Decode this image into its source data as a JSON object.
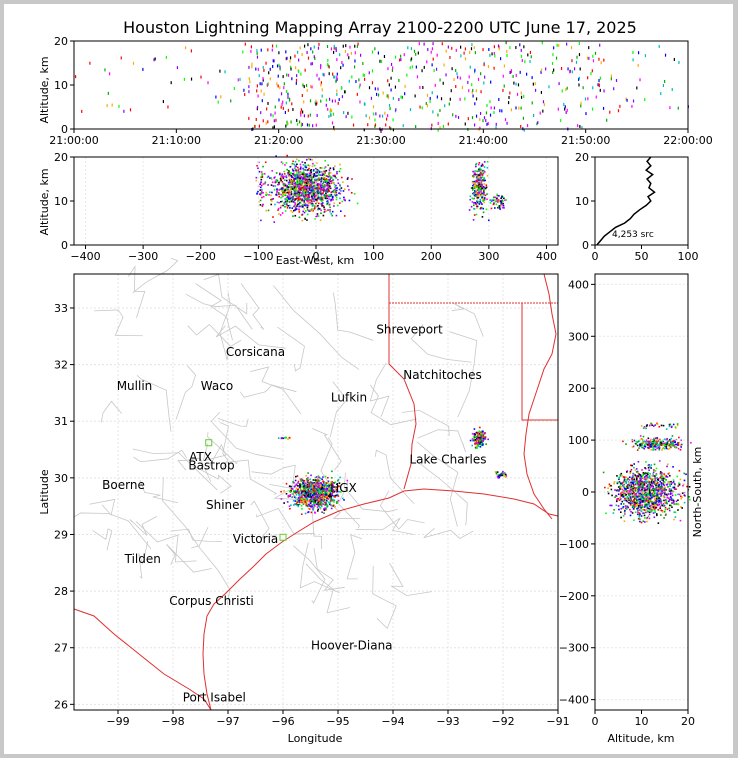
{
  "title": "Houston Lightning Mapping Array 2100-2200 UTC June 17, 2025",
  "chart_data": [
    {
      "panel": "time-altitude",
      "type": "scatter",
      "xlabel": "",
      "ylabel": "Altitude, km",
      "x_ticks": [
        "21:00:00",
        "21:10:00",
        "21:20:00",
        "21:30:00",
        "21:40:00",
        "21:50:00",
        "22:00:00"
      ],
      "xlim_min": [
        0,
        60
      ],
      "ylim": [
        0,
        20
      ],
      "y_ticks": [
        0,
        10,
        20
      ],
      "clusters": [
        {
          "x": [
            17,
            26
          ],
          "y": [
            0,
            20
          ],
          "n": 220
        },
        {
          "x": [
            26,
            36
          ],
          "y": [
            0,
            20
          ],
          "n": 160
        },
        {
          "x": [
            36,
            45
          ],
          "y": [
            0,
            20
          ],
          "n": 150
        },
        {
          "x": [
            45,
            53
          ],
          "y": [
            0,
            20
          ],
          "n": 90
        },
        {
          "x": [
            0,
            17
          ],
          "y": [
            4,
            20
          ],
          "n": 40
        },
        {
          "x": [
            53,
            60
          ],
          "y": [
            4,
            20
          ],
          "n": 25
        }
      ]
    },
    {
      "panel": "east-west-altitude",
      "type": "scatter",
      "xlabel": "East-West, km",
      "ylabel": "Altitude, km",
      "xlim": [
        -420,
        420
      ],
      "ylim": [
        0,
        20
      ],
      "x_ticks": [
        -400,
        -300,
        -200,
        -100,
        0,
        100,
        200,
        300,
        400
      ],
      "y_ticks": [
        0,
        10,
        20
      ],
      "clusters": [
        {
          "x": [
            -95,
            60
          ],
          "y": [
            6,
            20
          ],
          "n": 1300
        },
        {
          "x": [
            -110,
            -85
          ],
          "y": [
            6,
            20
          ],
          "n": 40
        },
        {
          "x": [
            265,
            300
          ],
          "y": [
            6,
            20
          ],
          "n": 260
        },
        {
          "x": [
            300,
            330
          ],
          "y": [
            8,
            12
          ],
          "n": 60
        }
      ]
    },
    {
      "panel": "altitude-histogram",
      "type": "line",
      "xlim": [
        0,
        100
      ],
      "ylim": [
        0,
        20
      ],
      "x_ticks": [
        0,
        50,
        100
      ],
      "y_ticks": [
        0,
        10,
        20
      ],
      "annotation": "4,253 src",
      "points": [
        [
          2,
          0
        ],
        [
          6,
          1
        ],
        [
          10,
          2
        ],
        [
          16,
          3
        ],
        [
          22,
          4
        ],
        [
          32,
          5
        ],
        [
          38,
          6
        ],
        [
          42,
          7
        ],
        [
          48,
          8
        ],
        [
          55,
          9
        ],
        [
          60,
          10
        ],
        [
          57,
          11
        ],
        [
          64,
          12
        ],
        [
          58,
          13
        ],
        [
          60,
          14
        ],
        [
          56,
          15
        ],
        [
          62,
          16
        ],
        [
          55,
          17
        ],
        [
          60,
          18
        ],
        [
          56,
          19
        ],
        [
          60,
          20
        ]
      ]
    },
    {
      "panel": "plan-view",
      "type": "scatter",
      "xlabel": "Longitude",
      "ylabel": "Latitude",
      "xlim": [
        -99.8,
        -91
      ],
      "ylim": [
        25.9,
        33.6
      ],
      "x_ticks": [
        -99,
        -98,
        -97,
        -96,
        -95,
        -94,
        -93,
        -92,
        -91
      ],
      "y_ticks": [
        26,
        27,
        28,
        29,
        30,
        31,
        32,
        33
      ],
      "clusters": [
        {
          "x": [
            -96.0,
            -94.9
          ],
          "y": [
            29.4,
            30.1
          ],
          "n": 900
        },
        {
          "x": [
            -92.6,
            -92.3
          ],
          "y": [
            30.5,
            30.9
          ],
          "n": 160
        },
        {
          "x": [
            -92.2,
            -91.9
          ],
          "y": [
            30.0,
            30.15
          ],
          "n": 40
        },
        {
          "x": [
            -96.2,
            -95.8
          ],
          "y": [
            30.7,
            30.75
          ],
          "n": 12
        }
      ],
      "labels": [
        {
          "text": "Shreveport",
          "lon": -93.7,
          "lat": 32.55,
          "color": "#000000"
        },
        {
          "text": "Corsicana",
          "lon": -96.5,
          "lat": 32.15,
          "color": "#000000"
        },
        {
          "text": "Natchitoches",
          "lon": -93.1,
          "lat": 31.75,
          "color": "#000000"
        },
        {
          "text": "Mullin",
          "lon": -98.7,
          "lat": 31.55,
          "color": "#f08030"
        },
        {
          "text": "Waco",
          "lon": -97.2,
          "lat": 31.55,
          "color": "#000000"
        },
        {
          "text": "Lufkin",
          "lon": -94.8,
          "lat": 31.35,
          "color": "#000000"
        },
        {
          "text": "ATX",
          "lon": -97.5,
          "lat": 30.3,
          "color": "#f08030"
        },
        {
          "text": "Bastrop",
          "lon": -97.3,
          "lat": 30.15,
          "color": "#000000"
        },
        {
          "text": "Lake Charles",
          "lon": -93.0,
          "lat": 30.25,
          "color": "#000000"
        },
        {
          "text": "Boerne",
          "lon": -98.9,
          "lat": 29.8,
          "color": "#000000"
        },
        {
          "text": "HGX",
          "lon": -94.9,
          "lat": 29.75,
          "color": "#f0a040"
        },
        {
          "text": "Shiner",
          "lon": -97.05,
          "lat": 29.45,
          "color": "#000000"
        },
        {
          "text": "Victoria",
          "lon": -96.5,
          "lat": 28.85,
          "color": "#000000"
        },
        {
          "text": "Tilden",
          "lon": -98.55,
          "lat": 28.5,
          "color": "#000000"
        },
        {
          "text": "Corpus Christi",
          "lon": -97.3,
          "lat": 27.75,
          "color": "#000000"
        },
        {
          "text": "Hoover-Diana",
          "lon": -94.75,
          "lat": 26.97,
          "color": "#1010ff"
        },
        {
          "text": "Port Isabel",
          "lon": -97.25,
          "lat": 26.05,
          "color": "#000000"
        }
      ],
      "stations": [
        {
          "lon": -97.35,
          "lat": 30.62
        },
        {
          "lon": -96.0,
          "lat": 28.95
        }
      ]
    },
    {
      "panel": "altitude-north-south",
      "type": "scatter",
      "xlabel": "Altitude, km",
      "ylabel": "North-South, km",
      "xlim": [
        0,
        20
      ],
      "ylim": [
        -420,
        420
      ],
      "x_ticks": [
        0,
        10,
        20
      ],
      "y_ticks": [
        -400,
        -300,
        -200,
        -100,
        0,
        100,
        200,
        300,
        400
      ],
      "clusters": [
        {
          "x": [
            2,
            20
          ],
          "y": [
            -60,
            60
          ],
          "n": 1100
        },
        {
          "x": [
            6,
            20
          ],
          "y": [
            80,
            110
          ],
          "n": 260
        },
        {
          "x": [
            6,
            20
          ],
          "y": [
            120,
            140
          ],
          "n": 30
        }
      ]
    }
  ]
}
